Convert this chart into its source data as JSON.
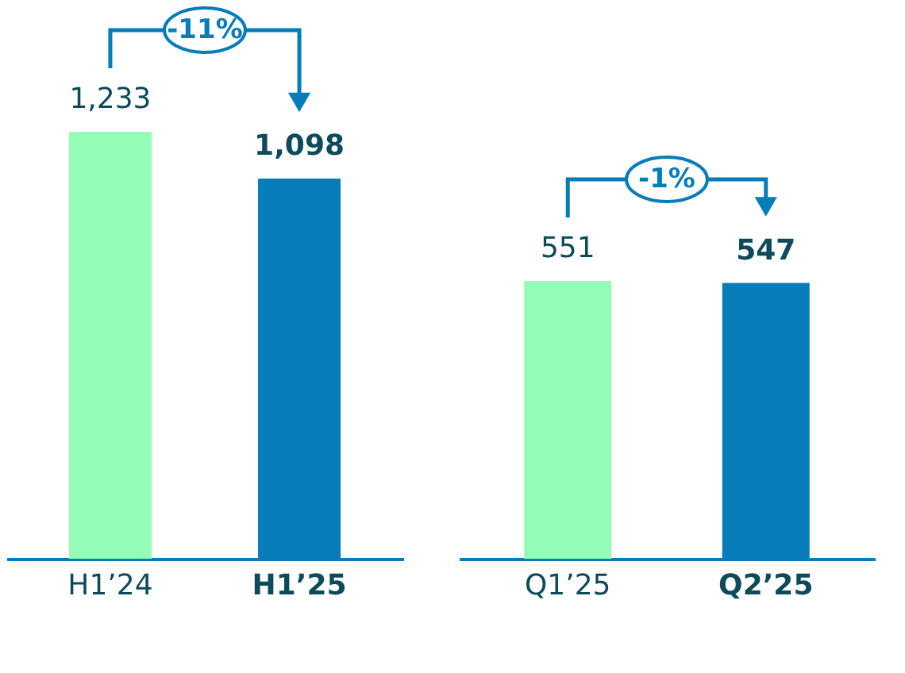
{
  "chart_data": [
    {
      "type": "bar",
      "categories": [
        "H1’24",
        "H1’25"
      ],
      "values": [
        1233,
        1098
      ],
      "value_labels": [
        "1,233",
        "1,098"
      ],
      "colors": [
        "#94fdb8",
        "#067cb9"
      ],
      "annotations": [
        "-11%"
      ]
    },
    {
      "type": "bar",
      "categories": [
        "Q1’25",
        "Q2’25"
      ],
      "values": [
        551,
        547
      ],
      "value_labels": [
        "551",
        "547"
      ],
      "colors": [
        "#94fdb8",
        "#067cb9"
      ],
      "annotations": [
        "-1%"
      ]
    }
  ]
}
